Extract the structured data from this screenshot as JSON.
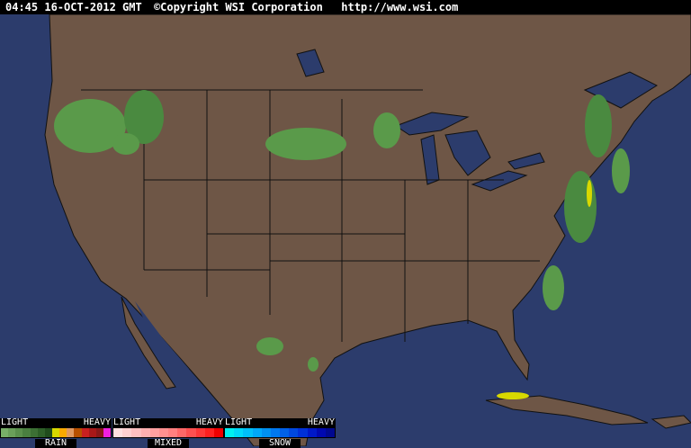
{
  "header": {
    "timestamp": "04:45 16-OCT-2012 GMT",
    "copyright": "©Copyright WSI Corporation",
    "url": "http://www.wsi.com"
  },
  "colors": {
    "ocean": "#2c3c6c",
    "land": "#6e5646",
    "border": "#1a1a1a",
    "radar_light": "#5a9a4a",
    "radar_dark": "#2f6a2a",
    "radar_yellow": "#d8d800"
  },
  "legend": [
    {
      "name": "RAIN",
      "light": "LIGHT",
      "heavy": "HEAVY",
      "colors": [
        "#78b068",
        "#6aa05a",
        "#5a904c",
        "#4a8040",
        "#3c7034",
        "#2e6028",
        "#204c1c",
        "#d8d800",
        "#f8a800",
        "#e09860",
        "#b85000",
        "#c82020",
        "#a81818",
        "#881818",
        "#f020e0"
      ]
    },
    {
      "name": "MIXED",
      "light": "LIGHT",
      "heavy": "HEAVY",
      "colors": [
        "#ffe0e0",
        "#ffd0d0",
        "#ffc0c0",
        "#ffb0b0",
        "#ffa0a0",
        "#ff9090",
        "#ff8080",
        "#ff6868",
        "#ff5050",
        "#ff3838",
        "#ff2020",
        "#f00000"
      ]
    },
    {
      "name": "SNOW",
      "light": "LIGHT",
      "heavy": "HEAVY",
      "colors": [
        "#00f0f0",
        "#00d8f8",
        "#00c0f8",
        "#00a8f8",
        "#0090f0",
        "#0078f0",
        "#0060e8",
        "#0048e0",
        "#0030d8",
        "#0018c8",
        "#0008b0",
        "#000890"
      ]
    }
  ]
}
